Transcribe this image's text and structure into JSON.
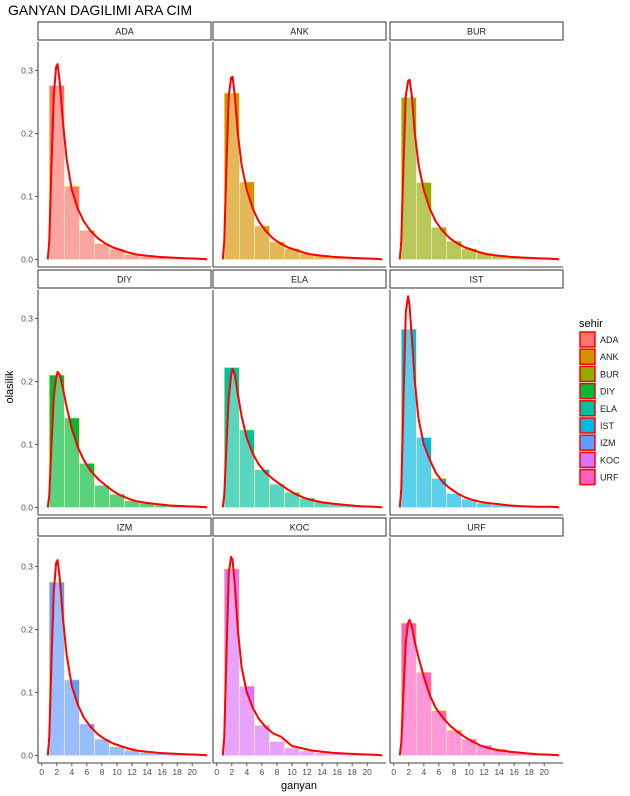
{
  "chart_data": {
    "type": "histogram-density-facet",
    "title": "GANYAN DAGILIMI ARA CIM",
    "xlabel": "ganyan",
    "ylabel": "olasilik",
    "xlim": [
      -0.5,
      22.5
    ],
    "ylim": [
      -0.012,
      0.345
    ],
    "x_ticks": [
      0,
      2,
      4,
      6,
      8,
      10,
      12,
      14,
      16,
      18,
      20
    ],
    "y_ticks": [
      0.0,
      0.1,
      0.2,
      0.3
    ],
    "y_tick_labels": [
      "0.0",
      "0.1",
      "0.2",
      "0.3"
    ],
    "bin_width": 2,
    "bin_centers": [
      2,
      4,
      6,
      8,
      10,
      12,
      14,
      16,
      18,
      20
    ],
    "density_color": "#ff0000",
    "legend": {
      "title": "sehir",
      "entries": [
        "ADA",
        "ANK",
        "BUR",
        "DIY",
        "ELA",
        "IST",
        "IZM",
        "KOC",
        "URF"
      ]
    },
    "panels": [
      {
        "name": "ADA",
        "color": "#F8766D",
        "bins": [
          0.276,
          0.116,
          0.046,
          0.025,
          0.016,
          0.008,
          0.005,
          0.003,
          0.002,
          0.001
        ],
        "density": [
          [
            0.8,
            0.0
          ],
          [
            1.0,
            0.03
          ],
          [
            1.3,
            0.15
          ],
          [
            1.6,
            0.26
          ],
          [
            1.9,
            0.305
          ],
          [
            2.1,
            0.31
          ],
          [
            2.4,
            0.28
          ],
          [
            2.8,
            0.22
          ],
          [
            3.3,
            0.16
          ],
          [
            4.0,
            0.11
          ],
          [
            4.8,
            0.08
          ],
          [
            5.6,
            0.06
          ],
          [
            6.5,
            0.045
          ],
          [
            7.5,
            0.033
          ],
          [
            8.5,
            0.025
          ],
          [
            9.5,
            0.019
          ],
          [
            10.5,
            0.015
          ],
          [
            11.5,
            0.011
          ],
          [
            12.5,
            0.008
          ],
          [
            14,
            0.006
          ],
          [
            15.5,
            0.004
          ],
          [
            17,
            0.003
          ],
          [
            19,
            0.002
          ],
          [
            21,
            0.001
          ],
          [
            22,
            0.0
          ]
        ]
      },
      {
        "name": "ANK",
        "color": "#D39200",
        "bins": [
          0.264,
          0.123,
          0.053,
          0.028,
          0.017,
          0.009,
          0.006,
          0.003,
          0.002,
          0.001
        ],
        "density": [
          [
            0.8,
            0.0
          ],
          [
            1.0,
            0.03
          ],
          [
            1.3,
            0.15
          ],
          [
            1.6,
            0.26
          ],
          [
            1.9,
            0.288
          ],
          [
            2.1,
            0.29
          ],
          [
            2.4,
            0.26
          ],
          [
            2.8,
            0.2
          ],
          [
            3.3,
            0.15
          ],
          [
            4.0,
            0.11
          ],
          [
            4.8,
            0.08
          ],
          [
            5.6,
            0.06
          ],
          [
            6.5,
            0.045
          ],
          [
            7.5,
            0.033
          ],
          [
            8.5,
            0.025
          ],
          [
            9.5,
            0.019
          ],
          [
            10.5,
            0.015
          ],
          [
            11.5,
            0.011
          ],
          [
            12.5,
            0.008
          ],
          [
            14,
            0.006
          ],
          [
            15.5,
            0.004
          ],
          [
            17,
            0.003
          ],
          [
            19,
            0.002
          ],
          [
            21,
            0.001
          ],
          [
            22,
            0.0
          ]
        ]
      },
      {
        "name": "BUR",
        "color": "#93AA00",
        "bins": [
          0.257,
          0.122,
          0.051,
          0.029,
          0.017,
          0.01,
          0.006,
          0.004,
          0.002,
          0.001
        ],
        "density": [
          [
            0.8,
            0.0
          ],
          [
            1.0,
            0.03
          ],
          [
            1.3,
            0.15
          ],
          [
            1.6,
            0.26
          ],
          [
            1.9,
            0.283
          ],
          [
            2.1,
            0.285
          ],
          [
            2.4,
            0.26
          ],
          [
            2.8,
            0.2
          ],
          [
            3.3,
            0.15
          ],
          [
            4.0,
            0.11
          ],
          [
            4.8,
            0.08
          ],
          [
            5.6,
            0.06
          ],
          [
            6.5,
            0.045
          ],
          [
            7.5,
            0.033
          ],
          [
            8.5,
            0.025
          ],
          [
            9.5,
            0.019
          ],
          [
            10.5,
            0.015
          ],
          [
            11.5,
            0.011
          ],
          [
            12.5,
            0.008
          ],
          [
            14,
            0.006
          ],
          [
            15.5,
            0.004
          ],
          [
            17,
            0.003
          ],
          [
            19,
            0.002
          ],
          [
            21,
            0.001
          ],
          [
            22,
            0.0
          ]
        ]
      },
      {
        "name": "DIY",
        "color": "#00BA38",
        "bins": [
          0.21,
          0.142,
          0.07,
          0.035,
          0.021,
          0.011,
          0.007,
          0.004,
          0.002,
          0.001
        ],
        "density": [
          [
            0.8,
            0.0
          ],
          [
            1.0,
            0.02
          ],
          [
            1.3,
            0.1
          ],
          [
            1.6,
            0.175
          ],
          [
            1.9,
            0.205
          ],
          [
            2.1,
            0.215
          ],
          [
            2.4,
            0.21
          ],
          [
            2.8,
            0.19
          ],
          [
            3.3,
            0.16
          ],
          [
            4.0,
            0.125
          ],
          [
            4.8,
            0.095
          ],
          [
            5.6,
            0.075
          ],
          [
            6.5,
            0.058
          ],
          [
            7.5,
            0.045
          ],
          [
            8.5,
            0.035
          ],
          [
            9.5,
            0.026
          ],
          [
            10.5,
            0.019
          ],
          [
            11.5,
            0.014
          ],
          [
            12.5,
            0.01
          ],
          [
            14,
            0.007
          ],
          [
            15.5,
            0.005
          ],
          [
            17,
            0.003
          ],
          [
            19,
            0.002
          ],
          [
            21,
            0.001
          ],
          [
            22,
            0.0
          ]
        ]
      },
      {
        "name": "ELA",
        "color": "#00C19F",
        "bins": [
          0.222,
          0.123,
          0.06,
          0.037,
          0.024,
          0.015,
          0.009,
          0.005,
          0.003,
          0.002
        ],
        "density": [
          [
            0.8,
            0.0
          ],
          [
            1.0,
            0.02
          ],
          [
            1.3,
            0.1
          ],
          [
            1.6,
            0.175
          ],
          [
            1.9,
            0.21
          ],
          [
            2.1,
            0.22
          ],
          [
            2.4,
            0.21
          ],
          [
            2.8,
            0.18
          ],
          [
            3.3,
            0.145
          ],
          [
            4.0,
            0.11
          ],
          [
            4.8,
            0.085
          ],
          [
            5.6,
            0.068
          ],
          [
            6.5,
            0.055
          ],
          [
            7.5,
            0.045
          ],
          [
            8.5,
            0.036
          ],
          [
            9.5,
            0.028
          ],
          [
            10.5,
            0.021
          ],
          [
            11.5,
            0.016
          ],
          [
            12.5,
            0.012
          ],
          [
            14,
            0.008
          ],
          [
            15.5,
            0.006
          ],
          [
            17,
            0.004
          ],
          [
            19,
            0.002
          ],
          [
            21,
            0.001
          ],
          [
            22,
            0.0
          ]
        ]
      },
      {
        "name": "IST",
        "color": "#00B9E3",
        "bins": [
          0.283,
          0.111,
          0.046,
          0.022,
          0.013,
          0.007,
          0.004,
          0.003,
          0.002,
          0.001
        ],
        "density": [
          [
            0.8,
            0.0
          ],
          [
            1.0,
            0.03
          ],
          [
            1.3,
            0.17
          ],
          [
            1.6,
            0.31
          ],
          [
            1.9,
            0.335
          ],
          [
            2.1,
            0.32
          ],
          [
            2.4,
            0.27
          ],
          [
            2.8,
            0.2
          ],
          [
            3.3,
            0.14
          ],
          [
            4.0,
            0.1
          ],
          [
            4.8,
            0.075
          ],
          [
            5.6,
            0.055
          ],
          [
            6.5,
            0.04
          ],
          [
            7.5,
            0.03
          ],
          [
            8.5,
            0.022
          ],
          [
            9.5,
            0.016
          ],
          [
            10.5,
            0.012
          ],
          [
            11.5,
            0.009
          ],
          [
            12.5,
            0.007
          ],
          [
            14,
            0.005
          ],
          [
            15.5,
            0.003
          ],
          [
            17,
            0.002
          ],
          [
            19,
            0.001
          ],
          [
            21,
            0.001
          ],
          [
            22,
            0.0
          ]
        ]
      },
      {
        "name": "IZM",
        "color": "#619CFF",
        "bins": [
          0.275,
          0.12,
          0.05,
          0.026,
          0.014,
          0.008,
          0.005,
          0.003,
          0.002,
          0.001
        ],
        "density": [
          [
            0.8,
            0.0
          ],
          [
            1.0,
            0.03
          ],
          [
            1.3,
            0.15
          ],
          [
            1.6,
            0.26
          ],
          [
            1.9,
            0.305
          ],
          [
            2.1,
            0.31
          ],
          [
            2.4,
            0.28
          ],
          [
            2.8,
            0.22
          ],
          [
            3.3,
            0.16
          ],
          [
            4.0,
            0.11
          ],
          [
            4.8,
            0.08
          ],
          [
            5.6,
            0.06
          ],
          [
            6.5,
            0.045
          ],
          [
            7.5,
            0.033
          ],
          [
            8.5,
            0.025
          ],
          [
            9.5,
            0.019
          ],
          [
            10.5,
            0.015
          ],
          [
            11.5,
            0.011
          ],
          [
            12.5,
            0.008
          ],
          [
            14,
            0.006
          ],
          [
            15.5,
            0.004
          ],
          [
            17,
            0.003
          ],
          [
            19,
            0.002
          ],
          [
            21,
            0.001
          ],
          [
            22,
            0.0
          ]
        ]
      },
      {
        "name": "KOC",
        "color": "#DB72FB",
        "bins": [
          0.296,
          0.11,
          0.048,
          0.022,
          0.012,
          0.007,
          0.004,
          0.003,
          0.002,
          0.001
        ],
        "density": [
          [
            0.8,
            0.0
          ],
          [
            1.0,
            0.03
          ],
          [
            1.3,
            0.16
          ],
          [
            1.6,
            0.29
          ],
          [
            1.9,
            0.315
          ],
          [
            2.1,
            0.31
          ],
          [
            2.4,
            0.27
          ],
          [
            2.8,
            0.2
          ],
          [
            3.3,
            0.14
          ],
          [
            4.0,
            0.1
          ],
          [
            4.8,
            0.075
          ],
          [
            5.6,
            0.058
          ],
          [
            6.5,
            0.045
          ],
          [
            7.5,
            0.035
          ],
          [
            8.5,
            0.03
          ],
          [
            9.0,
            0.025
          ],
          [
            10.0,
            0.015
          ],
          [
            11.5,
            0.011
          ],
          [
            12.5,
            0.008
          ],
          [
            14,
            0.006
          ],
          [
            15.5,
            0.004
          ],
          [
            17,
            0.003
          ],
          [
            19,
            0.002
          ],
          [
            21,
            0.001
          ],
          [
            22,
            0.0
          ]
        ]
      },
      {
        "name": "URF",
        "color": "#FF61C3",
        "bins": [
          0.21,
          0.132,
          0.071,
          0.04,
          0.026,
          0.016,
          0.01,
          0.006,
          0.004,
          0.002
        ],
        "density": [
          [
            0.8,
            0.0
          ],
          [
            1.0,
            0.02
          ],
          [
            1.3,
            0.1
          ],
          [
            1.6,
            0.18
          ],
          [
            1.9,
            0.21
          ],
          [
            2.1,
            0.215
          ],
          [
            2.4,
            0.205
          ],
          [
            2.8,
            0.18
          ],
          [
            3.3,
            0.155
          ],
          [
            4.0,
            0.125
          ],
          [
            4.8,
            0.095
          ],
          [
            5.6,
            0.075
          ],
          [
            6.5,
            0.06
          ],
          [
            7.5,
            0.047
          ],
          [
            8.5,
            0.037
          ],
          [
            9.5,
            0.029
          ],
          [
            10.5,
            0.022
          ],
          [
            11.5,
            0.016
          ],
          [
            12.5,
            0.012
          ],
          [
            14,
            0.008
          ],
          [
            15.5,
            0.006
          ],
          [
            17,
            0.004
          ],
          [
            19,
            0.002
          ],
          [
            21,
            0.001
          ],
          [
            22,
            0.0
          ]
        ]
      }
    ]
  }
}
